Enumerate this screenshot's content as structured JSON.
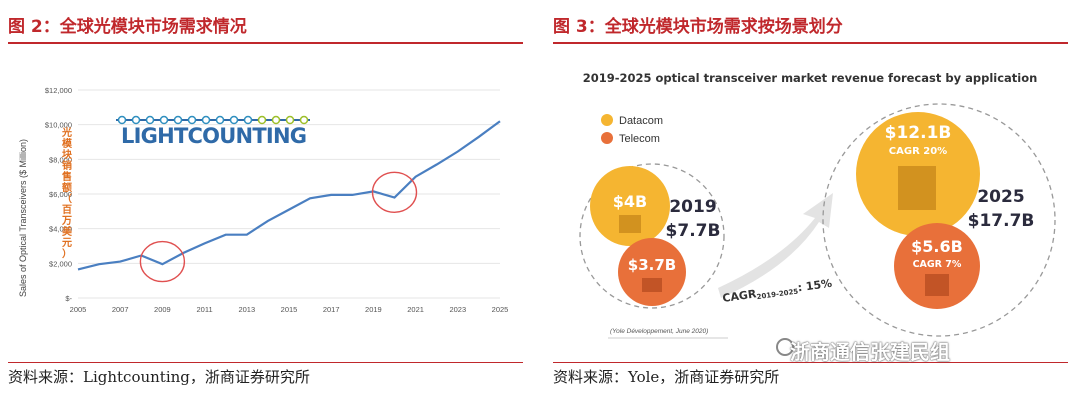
{
  "left": {
    "title": "图 2：全球光模块市场需求情况",
    "source": "资料来源：Lightcounting，浙商证券研究所",
    "logo": "LIGHTCOUNTING",
    "zh_axis_label": "光模块销售额（百万美元）"
  },
  "right": {
    "title": "图 3：全球光模块市场需求按场景划分",
    "source": "资料来源：Yole，浙商证券研究所",
    "chart_title": "2019-2025 optical transceiver market revenue forecast by application",
    "legend": [
      "Datacom",
      "Telecom"
    ],
    "y2019": {
      "year": "2019",
      "total": "$7.7B",
      "datacom": "$4B",
      "telecom": "$3.7B"
    },
    "y2025": {
      "year": "2025",
      "total": "$17.7B",
      "datacom": "$12.1B",
      "datacom_cagr": "CAGR 20%",
      "telecom": "$5.6B",
      "telecom_cagr": "CAGR 7%"
    },
    "cagr_label": "CAGR",
    "cagr_sub": "2019-2025",
    "cagr_value": ": 15%",
    "footnote": "(Yole Développement, June 2020)"
  },
  "watermark": "浙商通信张建民组",
  "colors": {
    "title_red": "#c0282c",
    "line_blue": "#4a7fc1",
    "datacom": "#f5b531",
    "telecom": "#e8703a",
    "circle_red": "#e05050"
  },
  "chart_data": {
    "type": "line",
    "title": "",
    "xlabel": "",
    "ylabel": "Sales of Optical Transceivers ($ Million)",
    "x": [
      2005,
      2006,
      2007,
      2008,
      2009,
      2010,
      2011,
      2012,
      2013,
      2014,
      2015,
      2016,
      2017,
      2018,
      2019,
      2020,
      2021,
      2022,
      2023,
      2024,
      2025
    ],
    "values": [
      1650,
      1950,
      2100,
      2450,
      1950,
      2600,
      3150,
      3650,
      3650,
      4450,
      5100,
      5750,
      5950,
      5950,
      6150,
      5800,
      7000,
      7700,
      8450,
      9300,
      10200
    ],
    "xticks": [
      "2005",
      "2007",
      "2009",
      "2011",
      "2013",
      "2015",
      "2017",
      "2019",
      "2021",
      "2023",
      "2025"
    ],
    "yticks": [
      "$-",
      "$2,000",
      "$4,000",
      "$6,000",
      "$8,000",
      "$10,000",
      "$12,000"
    ],
    "ylim": [
      0,
      12000
    ],
    "xlim": [
      2005,
      2025
    ],
    "annotations": [
      "circle at 2009 dip",
      "circle at 2020 dip"
    ]
  }
}
